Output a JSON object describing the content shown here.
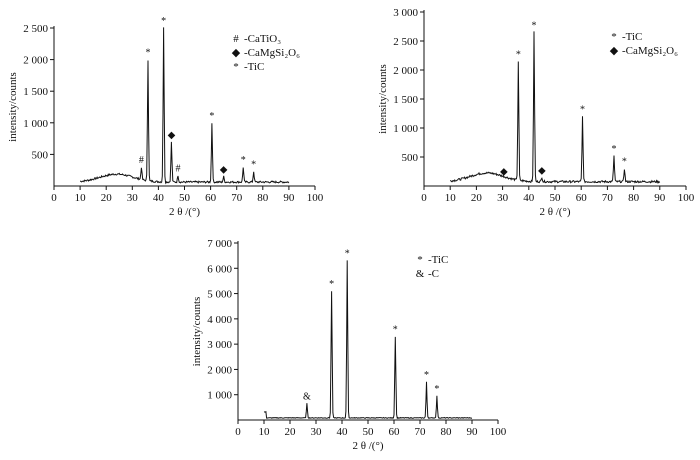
{
  "chart_data": [
    {
      "type": "line",
      "xlabel": "2 θ /(°)",
      "ylabel": "intensity/counts",
      "xlim": [
        0,
        100
      ],
      "ylim": [
        0,
        2500
      ],
      "xticks": [
        "0",
        "10",
        "20",
        "30",
        "40",
        "50",
        "60",
        "70",
        "80",
        "90",
        "100"
      ],
      "yticks": [
        "500",
        "1 000",
        "1 500",
        "2 000",
        "2 500"
      ],
      "legend": [
        {
          "symbol": "#",
          "label": "-CaTiO₃"
        },
        {
          "symbol": "◆",
          "label": "-CaMgSi₂O₆"
        },
        {
          "symbol": "*",
          "label": "-TiC"
        }
      ],
      "peaks": [
        {
          "x": 33.5,
          "y": 300,
          "marker": "#"
        },
        {
          "x": 36.0,
          "y": 2000,
          "marker": "*"
        },
        {
          "x": 42.0,
          "y": 2500,
          "marker": "*"
        },
        {
          "x": 45.0,
          "y": 700,
          "marker": "◆"
        },
        {
          "x": 47.5,
          "y": 170,
          "marker": "#"
        },
        {
          "x": 60.5,
          "y": 1000,
          "marker": "*"
        },
        {
          "x": 65.0,
          "y": 150,
          "marker": "◆"
        },
        {
          "x": 72.5,
          "y": 300,
          "marker": "*"
        },
        {
          "x": 76.5,
          "y": 230,
          "marker": "*"
        }
      ]
    },
    {
      "type": "line",
      "xlabel": "2 θ /(°)",
      "ylabel": "intensity/counts",
      "xlim": [
        0,
        100
      ],
      "ylim": [
        0,
        3000
      ],
      "xticks": [
        "0",
        "10",
        "20",
        "30",
        "40",
        "50",
        "60",
        "70",
        "80",
        "90",
        "100"
      ],
      "yticks": [
        "500",
        "1 000",
        "1 500",
        "2 000",
        "2 500",
        "3 000"
      ],
      "legend": [
        {
          "symbol": "*",
          "label": "-TiC"
        },
        {
          "symbol": "◆",
          "label": "-CaMgSi₂O₆"
        }
      ],
      "peaks": [
        {
          "x": 30.5,
          "y": 130,
          "marker": "◆"
        },
        {
          "x": 36.0,
          "y": 2150,
          "marker": "*"
        },
        {
          "x": 42.0,
          "y": 2650,
          "marker": "*"
        },
        {
          "x": 45.0,
          "y": 150,
          "marker": "◆"
        },
        {
          "x": 60.5,
          "y": 1200,
          "marker": "*"
        },
        {
          "x": 72.5,
          "y": 520,
          "marker": "*"
        },
        {
          "x": 76.5,
          "y": 300,
          "marker": "*"
        }
      ]
    },
    {
      "type": "line",
      "xlabel": "2 θ /(°)",
      "ylabel": "intensity/counts",
      "xlim": [
        0,
        100
      ],
      "ylim": [
        0,
        7000
      ],
      "xticks": [
        "0",
        "10",
        "20",
        "30",
        "40",
        "50",
        "60",
        "70",
        "80",
        "90",
        "100"
      ],
      "yticks": [
        "1 000",
        "2 000",
        "3 000",
        "4 000",
        "5 000",
        "6 000",
        "7 000"
      ],
      "legend": [
        {
          "symbol": "*",
          "label": "-TiC"
        },
        {
          "symbol": "&",
          "label": "-C"
        }
      ],
      "peaks": [
        {
          "x": 26.5,
          "y": 650,
          "marker": "&"
        },
        {
          "x": 36.0,
          "y": 5100,
          "marker": "*"
        },
        {
          "x": 42.0,
          "y": 6300,
          "marker": "*"
        },
        {
          "x": 60.5,
          "y": 3300,
          "marker": "*"
        },
        {
          "x": 72.5,
          "y": 1500,
          "marker": "*"
        },
        {
          "x": 76.5,
          "y": 950,
          "marker": "*"
        }
      ]
    }
  ]
}
